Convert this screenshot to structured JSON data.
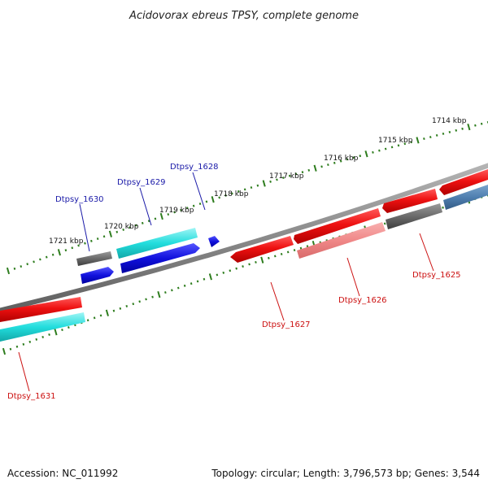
{
  "title": "Acidovorax ebreus TPSY, complete genome",
  "footer": {
    "accession": "Accession: NC_011992",
    "topology": "Topology: circular; Length: 3,796,573 bp; Genes: 3,544"
  },
  "colors": {
    "backbone": "#8a8a8a",
    "tick_green": "#2e7d1e",
    "label_blue": "#1a1aa8",
    "label_red": "#cc1111",
    "red": "#ee1111",
    "pink": "#f08888",
    "grey": "#6a6a6a",
    "blue": "#1111dd",
    "cyan": "#22dddd",
    "steel": "#4f7fb0"
  },
  "ticks": [
    "1714 kbp",
    "1715 kbp",
    "1716 kbp",
    "1717 kbp",
    "1718 kbp",
    "1719 kbp",
    "1720 kbp",
    "1721 kbp"
  ],
  "genes_labeled": [
    {
      "name": "Dtpsy_1625",
      "strand": "reverse"
    },
    {
      "name": "Dtpsy_1626",
      "strand": "reverse"
    },
    {
      "name": "Dtpsy_1627",
      "strand": "reverse"
    },
    {
      "name": "Dtpsy_1628",
      "strand": "forward"
    },
    {
      "name": "Dtpsy_1629",
      "strand": "forward"
    },
    {
      "name": "Dtpsy_1630",
      "strand": "forward"
    },
    {
      "name": "Dtpsy_1631",
      "strand": "reverse"
    }
  ]
}
